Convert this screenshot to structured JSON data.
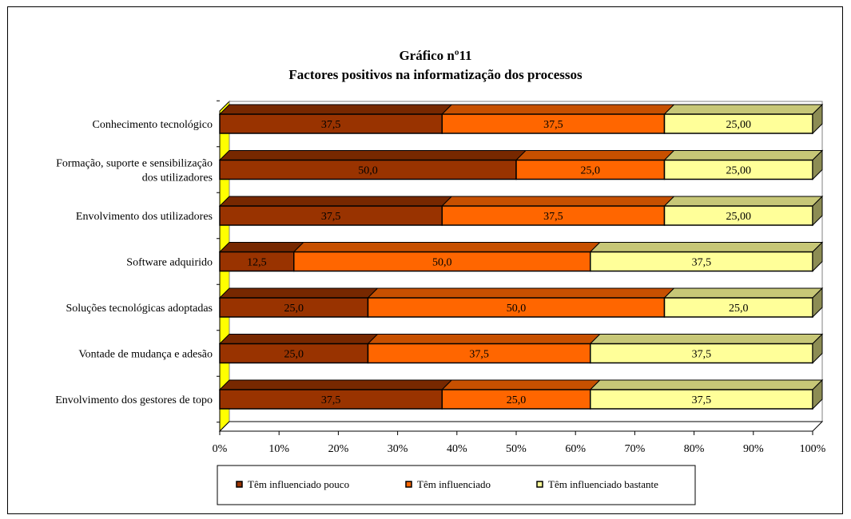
{
  "chart_data": {
    "type": "bar",
    "orientation": "horizontal",
    "stacked": "percent",
    "title": "Gráfico nº11",
    "subtitle": "Factores positivos na informatização dos processos",
    "categories": [
      [
        "Conhecimento tecnológico"
      ],
      [
        "Formação,  suporte e sensibilização",
        "dos utilizadores"
      ],
      [
        "Envolvimento dos utilizadores"
      ],
      [
        "Software adquirido"
      ],
      [
        "Soluções tecnológicas adoptadas"
      ],
      [
        "Vontade de mudança e adesão"
      ],
      [
        "Envolvimento dos gestores de topo"
      ]
    ],
    "series": [
      {
        "name": "Têm influenciado pouco",
        "color": "#993300",
        "values": [
          37.5,
          50.0,
          37.5,
          12.5,
          25.0,
          25.0,
          37.5
        ],
        "labels": [
          "37,5",
          "50,0",
          "37,5",
          "12,5",
          "25,0",
          "25,0",
          "37,5"
        ]
      },
      {
        "name": "Têm influenciado",
        "color": "#FF6600",
        "values": [
          37.5,
          25.0,
          37.5,
          50.0,
          50.0,
          37.5,
          25.0
        ],
        "labels": [
          "37,5",
          "25,0",
          "37,5",
          "50,0",
          "50,0",
          "37,5",
          "25,0"
        ]
      },
      {
        "name": "Têm influenciado bastante",
        "color": "#FFFF99",
        "values": [
          25.0,
          25.0,
          25.0,
          37.5,
          25.0,
          37.5,
          37.5
        ],
        "labels": [
          "25,00",
          "25,00",
          "25,00",
          "37,5",
          "25,0",
          "37,5",
          "37,5"
        ]
      }
    ],
    "x_ticks": [
      "0%",
      "10%",
      "20%",
      "30%",
      "40%",
      "50%",
      "60%",
      "70%",
      "80%",
      "90%",
      "100%"
    ],
    "xlim": [
      0,
      100
    ],
    "grid": false,
    "legend_position": "bottom",
    "wall_color": "#FFFF00"
  }
}
